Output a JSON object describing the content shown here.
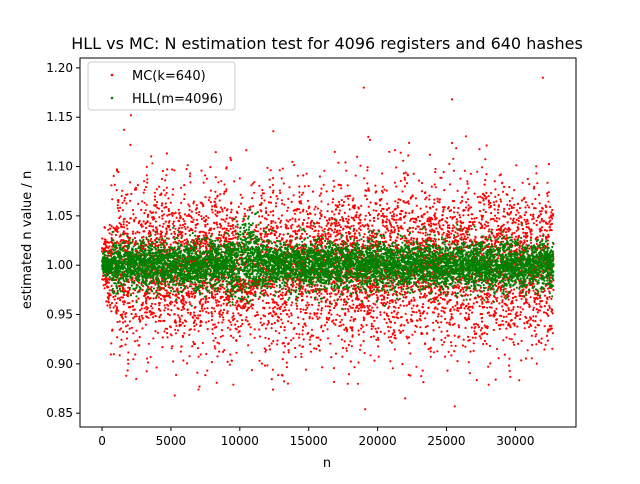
{
  "chart_data": {
    "type": "scatter",
    "title": "HLL vs MC: N estimation test for 4096 registers and 640 hashes",
    "xlabel": "n",
    "ylabel": "estimated n value / n",
    "xlim": [
      -1600,
      34400
    ],
    "ylim": [
      0.836,
      1.21
    ],
    "x_ticks": [
      0,
      5000,
      10000,
      15000,
      20000,
      25000,
      30000
    ],
    "y_ticks": [
      0.85,
      0.9,
      0.95,
      1.0,
      1.05,
      1.1,
      1.15,
      1.2
    ],
    "y_tick_labels": [
      "0.85",
      "0.90",
      "0.95",
      "1.00",
      "1.05",
      "1.10",
      "1.15",
      "1.20"
    ],
    "grid": false,
    "legend_position": "upper-left",
    "series": [
      {
        "name": "MC(k=640)",
        "color": "#ff0000",
        "marker": "dot",
        "description_of_distribution": "dense band around 1.00, typical spread approx ±0.045, extremes 0.85–1.19, x from 0 to ~32768; bulge of low values near n=10000",
        "x_range": [
          0,
          32768
        ],
        "center": 1.0,
        "spread_sigma": 0.04,
        "outlier_points": [
          {
            "x": 19000,
            "y": 1.18
          },
          {
            "x": 32000,
            "y": 1.19
          },
          {
            "x": 2100,
            "y": 1.152
          },
          {
            "x": 25400,
            "y": 1.168
          },
          {
            "x": 19100,
            "y": 0.854
          },
          {
            "x": 25600,
            "y": 0.857
          },
          {
            "x": 7000,
            "y": 0.874
          },
          {
            "x": 22000,
            "y": 0.865
          },
          {
            "x": 13500,
            "y": 0.88
          }
        ]
      },
      {
        "name": "HLL(m=4096)",
        "color": "#008000",
        "marker": "dot",
        "description_of_distribution": "tight band around 1.00, spread approx ±0.02, widening to ±0.04 at n≈10000 (jump to 1.06 just after 10000)",
        "x_range": [
          0,
          32768
        ],
        "center": 1.0,
        "spread_sigma": 0.012
      }
    ]
  }
}
